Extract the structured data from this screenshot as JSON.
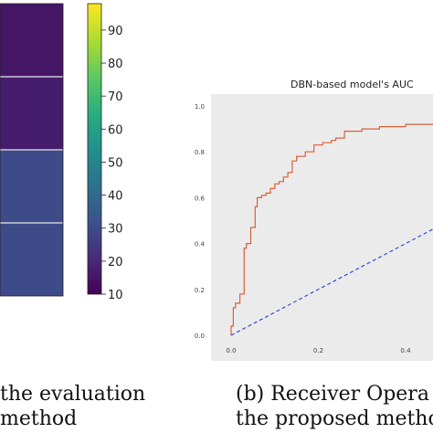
{
  "chart_data": [
    {
      "type": "heatmap",
      "title": "",
      "cells": [
        {
          "row": 0,
          "value": 15
        },
        {
          "row": 1,
          "value": 17
        },
        {
          "row": 2,
          "value": 30
        },
        {
          "row": 3,
          "value": 30
        }
      ],
      "colorbar": {
        "ticks": [
          10,
          20,
          30,
          40,
          50,
          60,
          70,
          80,
          90
        ],
        "range": [
          10,
          98
        ],
        "colormap": "viridis"
      },
      "caption_lines": [
        "the evaluation",
        "method"
      ]
    },
    {
      "type": "line",
      "title": "DBN-based model's AUC",
      "xlim": [
        0,
        0.5
      ],
      "ylim": [
        0,
        1.0
      ],
      "xticks": [
        "0.0",
        "0.2",
        "0.4"
      ],
      "yticks": [
        "0.0",
        "0.2",
        "0.4",
        "0.6",
        "0.8",
        "1.0"
      ],
      "grid": false,
      "background": "#ebebeb",
      "series": [
        {
          "color": "#d9603b",
          "style": "step",
          "x": [
            0.0,
            0.0,
            0.005,
            0.005,
            0.01,
            0.01,
            0.02,
            0.02,
            0.03,
            0.03,
            0.035,
            0.035,
            0.045,
            0.045,
            0.055,
            0.055,
            0.06,
            0.06,
            0.07,
            0.07,
            0.08,
            0.08,
            0.09,
            0.09,
            0.1,
            0.1,
            0.11,
            0.11,
            0.12,
            0.12,
            0.13,
            0.13,
            0.14,
            0.14,
            0.15,
            0.15,
            0.17,
            0.17,
            0.19,
            0.19,
            0.21,
            0.21,
            0.23,
            0.23,
            0.24,
            0.24,
            0.26,
            0.26,
            0.3,
            0.3,
            0.34,
            0.34,
            0.4,
            0.4,
            0.5
          ],
          "y": [
            0.0,
            0.04,
            0.04,
            0.12,
            0.12,
            0.14,
            0.14,
            0.18,
            0.18,
            0.38,
            0.38,
            0.4,
            0.4,
            0.47,
            0.47,
            0.56,
            0.56,
            0.6,
            0.6,
            0.61,
            0.61,
            0.62,
            0.62,
            0.64,
            0.64,
            0.66,
            0.66,
            0.67,
            0.67,
            0.69,
            0.69,
            0.71,
            0.71,
            0.76,
            0.76,
            0.78,
            0.78,
            0.8,
            0.8,
            0.83,
            0.83,
            0.84,
            0.84,
            0.85,
            0.85,
            0.86,
            0.86,
            0.89,
            0.89,
            0.9,
            0.9,
            0.91,
            0.91,
            0.92,
            0.92
          ]
        },
        {
          "color": "#1f3fd6",
          "style": "dashed",
          "x": [
            0.0,
            0.5
          ],
          "y": [
            0.0,
            0.5
          ]
        }
      ],
      "caption_lines": [
        "(b)  Receiver  Opera",
        "the proposed metho"
      ]
    }
  ]
}
